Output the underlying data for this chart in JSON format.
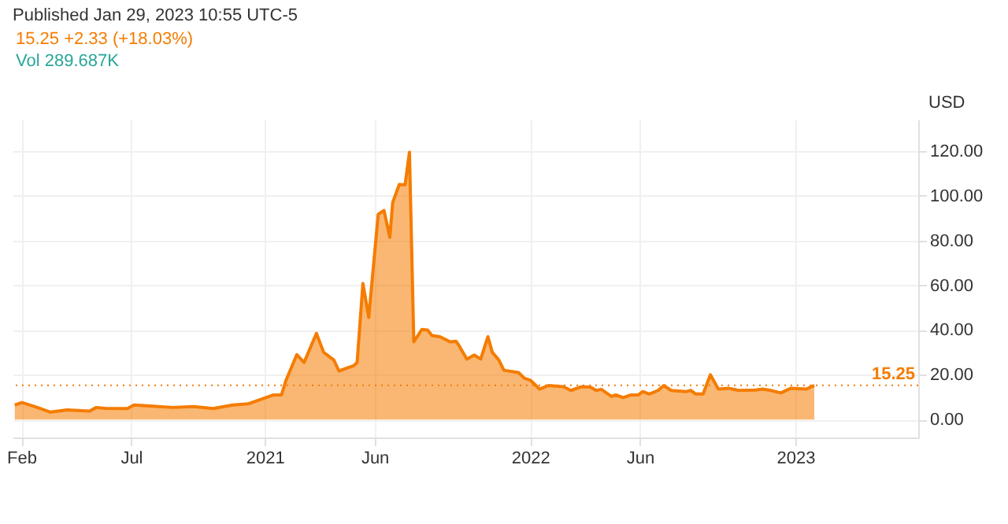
{
  "chart_data": {
    "type": "area",
    "title": "Published Jan 29, 2023 10:55 UTC-5",
    "subtitle": "15.25  +2.33 (+18.03%)",
    "annotations": [
      "Vol 289.687K"
    ],
    "ylabel": "USD",
    "x": [
      "2020-01-23",
      "2020-02-02",
      "2020-02-23",
      "2020-03-12",
      "2020-04-04",
      "2020-05-05",
      "2020-05-14",
      "2020-05-26",
      "2020-06-26",
      "2020-07-05",
      "2020-07-31",
      "2020-08-27",
      "2020-09-25",
      "2020-10-22",
      "2020-11-18",
      "2020-12-09",
      "2020-12-28",
      "2021-01-13",
      "2021-01-24",
      "2021-01-30",
      "2021-02-14",
      "2021-02-24",
      "2021-03-13",
      "2021-03-23",
      "2021-04-06",
      "2021-04-13",
      "2021-05-03",
      "2021-05-08",
      "2021-05-16",
      "2021-05-24",
      "2021-06-06",
      "2021-06-14",
      "2021-06-22",
      "2021-06-26",
      "2021-07-05",
      "2021-07-13",
      "2021-07-19",
      "2021-07-25",
      "2021-08-05",
      "2021-08-13",
      "2021-08-19",
      "2021-08-30",
      "2021-09-13",
      "2021-09-21",
      "2021-09-26",
      "2021-10-06",
      "2021-10-16",
      "2021-10-25",
      "2021-11-04",
      "2021-11-10",
      "2021-11-19",
      "2021-11-26",
      "2021-12-16",
      "2021-12-24",
      "2022-01-02",
      "2022-01-14",
      "2022-01-26",
      "2022-02-16",
      "2022-02-26",
      "2022-03-13",
      "2022-03-25",
      "2022-04-02",
      "2022-04-09",
      "2022-04-23",
      "2022-04-29",
      "2022-05-09",
      "2022-05-20",
      "2022-05-30",
      "2022-06-05",
      "2022-06-14",
      "2022-06-26",
      "2022-07-04",
      "2022-07-14",
      "2022-08-04",
      "2022-08-10",
      "2022-08-17",
      "2022-08-27",
      "2022-09-06",
      "2022-09-17",
      "2022-10-01",
      "2022-10-15",
      "2022-11-07",
      "2022-11-17",
      "2022-11-28",
      "2022-12-12",
      "2022-12-26",
      "2023-01-16",
      "2023-01-27"
    ],
    "series": [
      {
        "color": "#f57c00",
        "values": [
          6.5,
          7.6,
          5.4,
          3.3,
          4.3,
          3.8,
          5.4,
          5.0,
          4.9,
          6.5,
          6.0,
          5.4,
          5.8,
          4.9,
          6.5,
          7.0,
          9.2,
          11,
          11,
          17.4,
          29,
          25.5,
          38.5,
          30,
          26.6,
          21.7,
          24,
          25.5,
          60.8,
          45.6,
          91.7,
          93.4,
          81.4,
          97,
          105,
          104.8,
          119.4,
          34.7,
          40.2,
          40,
          37.5,
          37,
          34.7,
          35,
          32.6,
          27,
          28.8,
          27,
          37,
          30,
          26.6,
          22,
          21,
          18.5,
          17.4,
          13.6,
          15.2,
          14.7,
          13,
          14.7,
          14.5,
          13,
          13.5,
          10.3,
          11,
          9.8,
          11,
          11,
          12.5,
          11.4,
          13,
          15.2,
          13,
          12.5,
          13,
          11.4,
          11.4,
          20,
          13.6,
          14,
          13,
          13.2,
          13.6,
          13,
          11.9,
          14,
          13.6,
          15.25
        ]
      }
    ],
    "xlim": [
      "2020-01-20",
      "2023-06-19"
    ],
    "xticks": [
      {
        "value": "2020-02",
        "label": "Feb"
      },
      {
        "value": "2020-07",
        "label": "Jul"
      },
      {
        "value": "2021",
        "label": "2021"
      },
      {
        "value": "2021-06",
        "label": "Jun"
      },
      {
        "value": "2022",
        "label": "2022"
      },
      {
        "value": "2022-06",
        "label": "Jun"
      },
      {
        "value": "2023",
        "label": "2023"
      }
    ],
    "ylim": [
      -8,
      134
    ],
    "yticks": [
      {
        "value": 0,
        "label": "0.00"
      },
      {
        "value": 20,
        "label": "20.00"
      },
      {
        "value": 40,
        "label": "40.00"
      },
      {
        "value": 60,
        "label": "60.00"
      },
      {
        "value": 80,
        "label": "80.00"
      },
      {
        "value": 100,
        "label": "100.00"
      },
      {
        "value": 120,
        "label": "120.00"
      }
    ],
    "ref_lines": [
      {
        "axis": "y",
        "value": 15.25,
        "label": "15.25",
        "color": "#f57c00",
        "line_style": "dotted"
      }
    ],
    "grid": true
  }
}
